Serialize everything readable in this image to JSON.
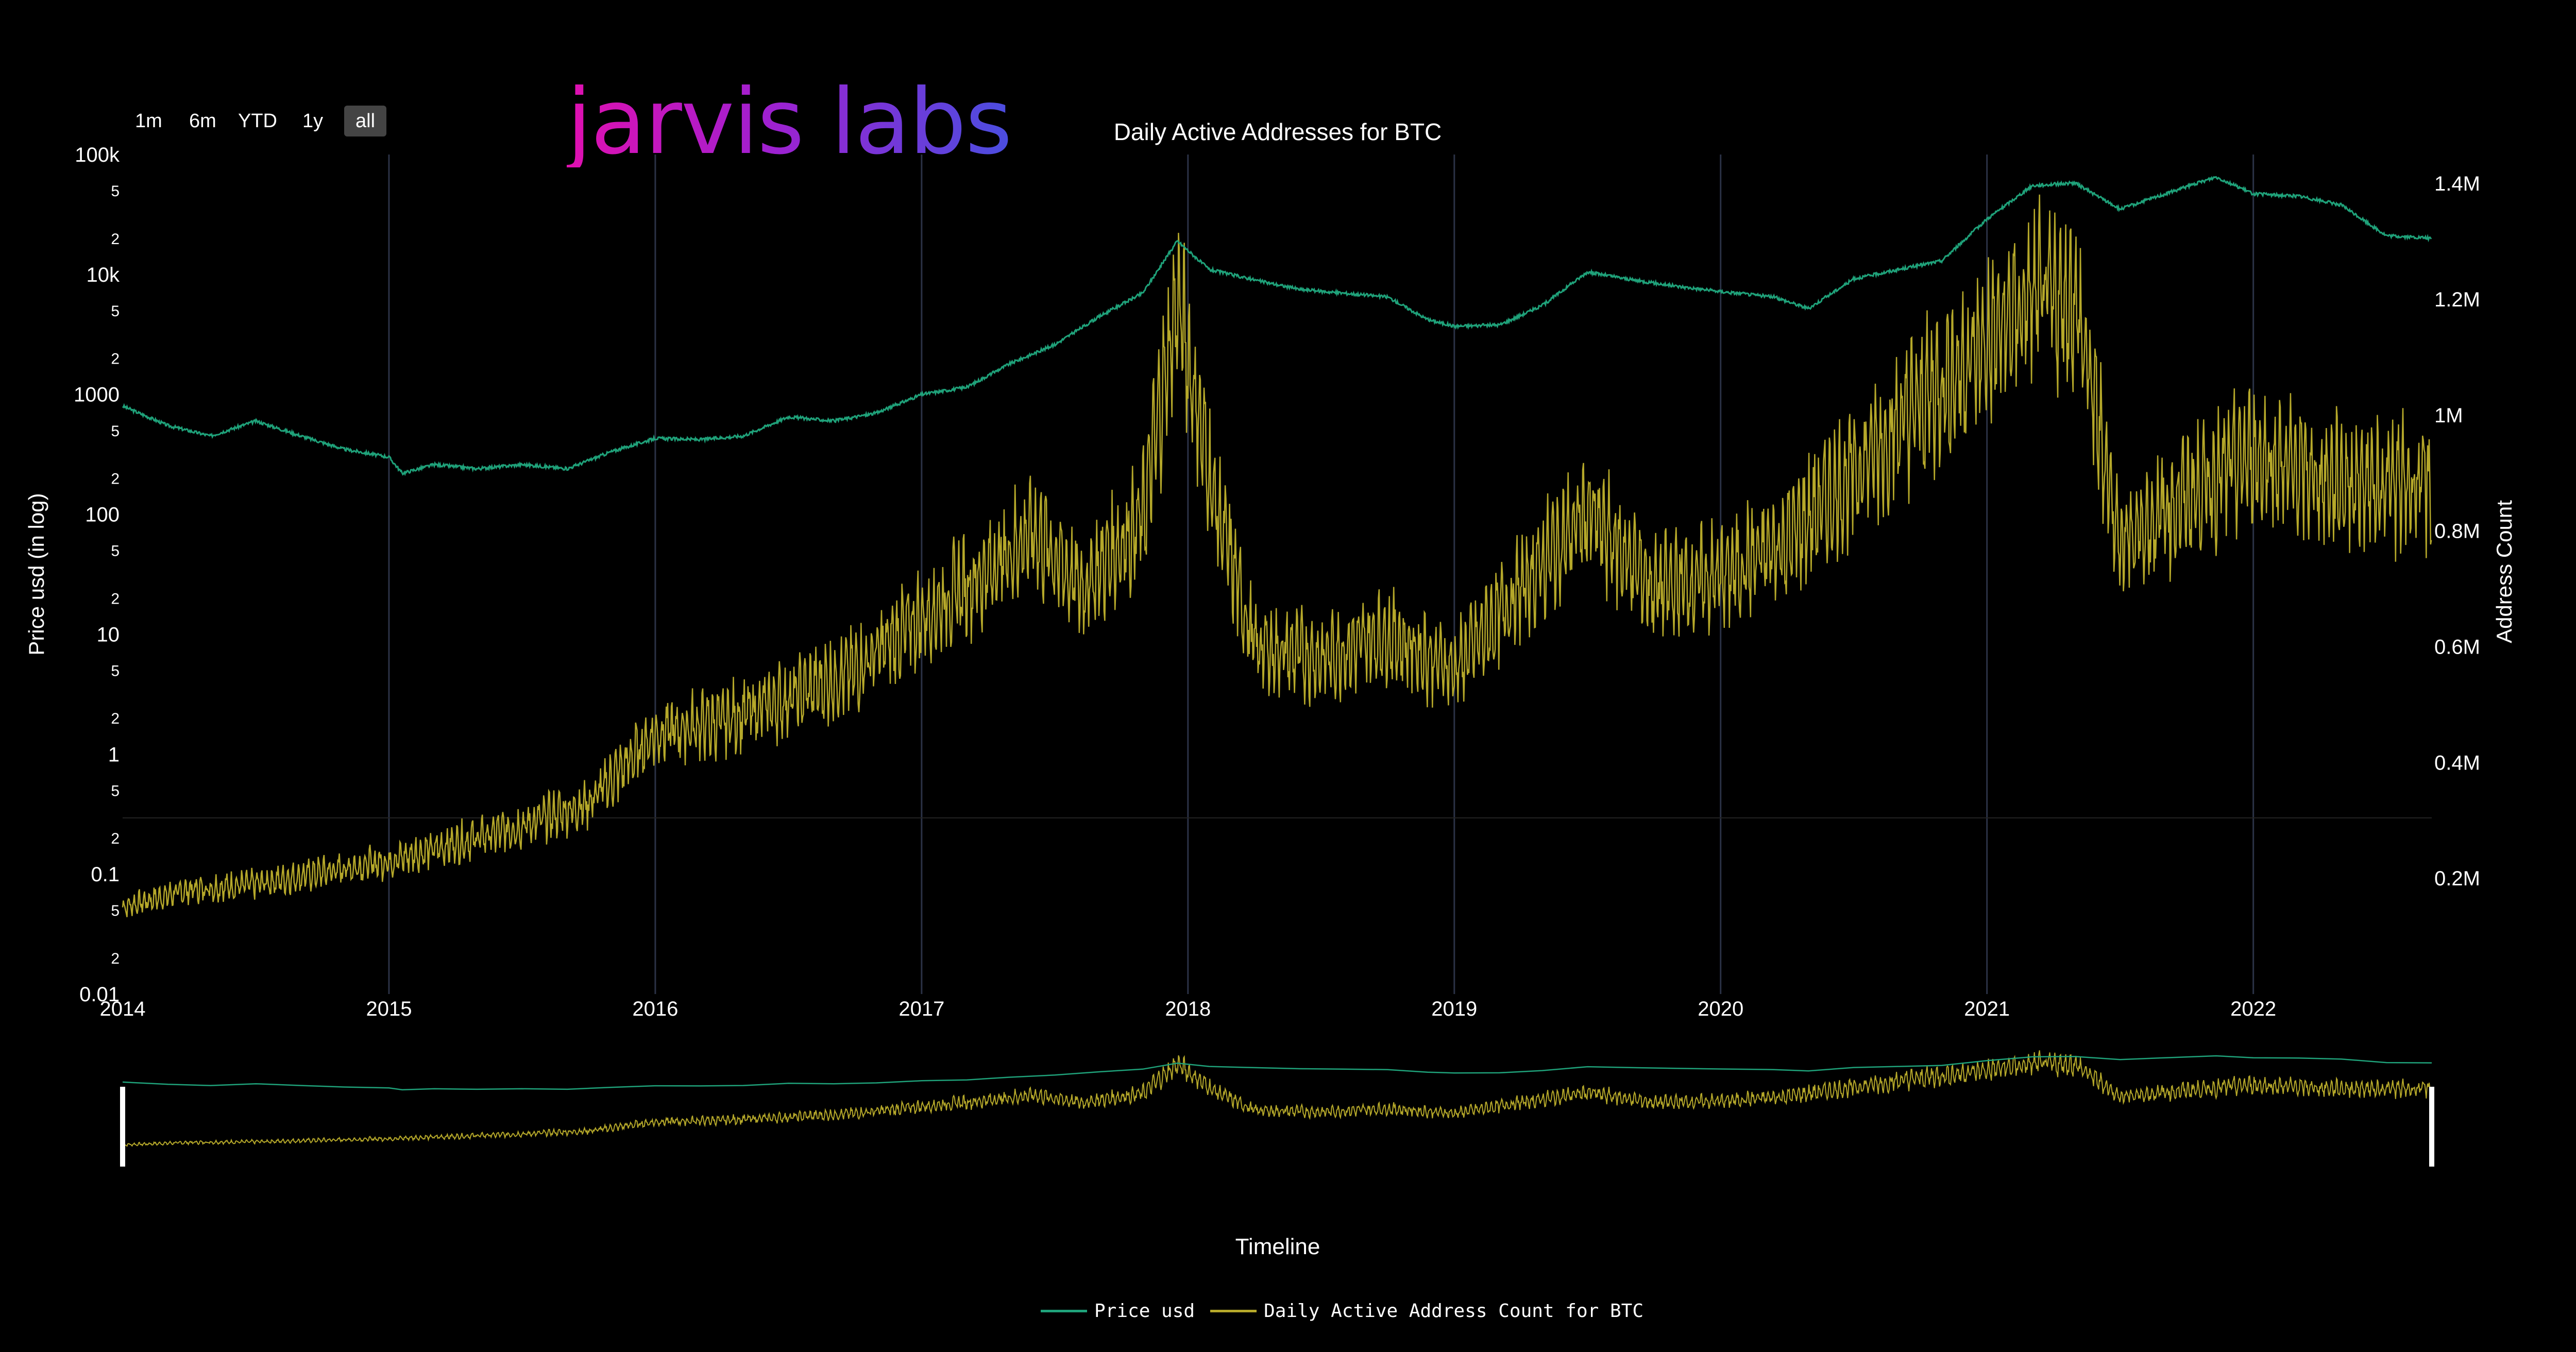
{
  "logo": {
    "text": "jarvis labs"
  },
  "range_selector": {
    "buttons": [
      "1m",
      "6m",
      "YTD",
      "1y",
      "all"
    ],
    "active": "all"
  },
  "colors": {
    "price": "#1fa27a",
    "address": "#b5a82a",
    "background": "#000000",
    "grid": "#2b3246"
  },
  "chart_data": {
    "type": "line",
    "title": "Daily Active Addresses for BTC",
    "xlabel": "Timeline",
    "ylabel_left": "Price usd (in log)",
    "ylabel_right": "Address Count",
    "x_range": [
      2014.0,
      2022.67
    ],
    "x_ticks": [
      "2014",
      "2015",
      "2016",
      "2017",
      "2018",
      "2019",
      "2020",
      "2021",
      "2022"
    ],
    "y_left": {
      "scale": "log",
      "range": [
        0.01,
        100000
      ],
      "major_ticks": [
        "0.01",
        "0.1",
        "1",
        "10",
        "100",
        "1000",
        "10k",
        "100k"
      ],
      "minor_ticks": [
        "2",
        "5"
      ]
    },
    "y_right": {
      "scale": "linear",
      "range": [
        0,
        1450000
      ],
      "ticks": [
        "0.2M",
        "0.4M",
        "0.6M",
        "0.8M",
        "1M",
        "1.2M",
        "1.4M"
      ]
    },
    "legend": {
      "placement": "bottom-center",
      "entries": [
        "Price usd",
        "Daily Active Address Count for BTC"
      ]
    },
    "series": [
      {
        "name": "Price usd",
        "axis": "left",
        "x": [
          2014.0,
          2014.17,
          2014.33,
          2014.5,
          2014.67,
          2014.83,
          2015.0,
          2015.05,
          2015.17,
          2015.33,
          2015.5,
          2015.67,
          2015.83,
          2016.0,
          2016.17,
          2016.33,
          2016.5,
          2016.67,
          2016.83,
          2017.0,
          2017.17,
          2017.33,
          2017.5,
          2017.67,
          2017.83,
          2017.96,
          2018.08,
          2018.25,
          2018.42,
          2018.58,
          2018.75,
          2018.9,
          2019.0,
          2019.17,
          2019.33,
          2019.5,
          2019.67,
          2019.83,
          2020.0,
          2020.2,
          2020.33,
          2020.5,
          2020.67,
          2020.83,
          2021.0,
          2021.17,
          2021.33,
          2021.5,
          2021.67,
          2021.86,
          2022.0,
          2022.17,
          2022.33,
          2022.5,
          2022.67
        ],
        "y": [
          800,
          550,
          450,
          600,
          450,
          350,
          300,
          220,
          260,
          240,
          260,
          240,
          330,
          430,
          420,
          450,
          650,
          600,
          700,
          1000,
          1150,
          1800,
          2600,
          4500,
          7000,
          19000,
          11000,
          9000,
          7500,
          7000,
          6500,
          4200,
          3700,
          3800,
          5500,
          10500,
          9000,
          8000,
          7200,
          6500,
          5200,
          9200,
          11000,
          13000,
          29000,
          55000,
          58000,
          35000,
          47000,
          65000,
          47000,
          45000,
          38000,
          21000,
          20000
        ]
      },
      {
        "name": "Daily Active Address Count for BTC",
        "axis": "right",
        "x": [
          2014.0,
          2014.25,
          2014.5,
          2014.75,
          2015.0,
          2015.25,
          2015.5,
          2015.75,
          2016.0,
          2016.25,
          2016.5,
          2016.75,
          2017.0,
          2017.25,
          2017.42,
          2017.6,
          2017.83,
          2017.96,
          2018.1,
          2018.25,
          2018.5,
          2018.75,
          2019.0,
          2019.25,
          2019.5,
          2019.75,
          2020.0,
          2020.25,
          2020.5,
          2020.75,
          2021.0,
          2021.17,
          2021.33,
          2021.5,
          2021.75,
          2022.0,
          2022.25,
          2022.5,
          2022.67
        ],
        "y": [
          150000,
          180000,
          190000,
          210000,
          230000,
          260000,
          290000,
          330000,
          450000,
          470000,
          510000,
          560000,
          650000,
          730000,
          800000,
          700000,
          820000,
          1200000,
          850000,
          600000,
          580000,
          620000,
          560000,
          700000,
          830000,
          700000,
          720000,
          780000,
          900000,
          1020000,
          1120000,
          1200000,
          1200000,
          780000,
          860000,
          930000,
          890000,
          880000,
          880000
        ]
      }
    ]
  }
}
